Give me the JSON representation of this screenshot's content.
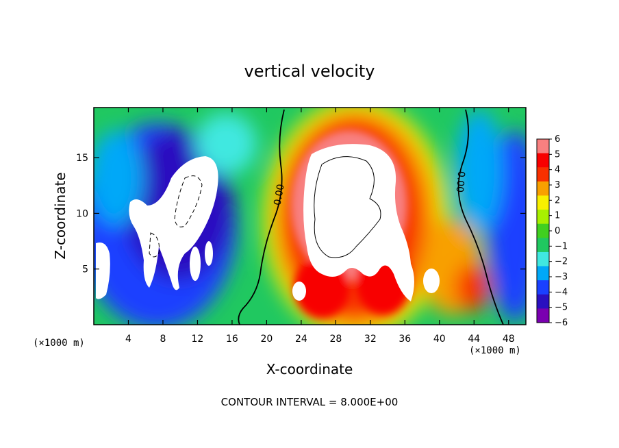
{
  "chart_data": {
    "type": "heatmap",
    "title": "vertical velocity",
    "xlabel": "X-coordinate",
    "ylabel": "Z-coordinate",
    "x_unit": "(×1000 m)",
    "x_ticks": [
      4,
      8,
      12,
      16,
      20,
      24,
      28,
      32,
      36,
      40,
      44,
      48
    ],
    "y_ticks": [
      5,
      10,
      15
    ],
    "xlim": [
      0,
      50
    ],
    "ylim": [
      0,
      19.5
    ],
    "colorbar": {
      "ticks": [
        6,
        5,
        4,
        3,
        2,
        1,
        0,
        -1,
        -2,
        -3,
        -4,
        -5,
        -6
      ],
      "range": [
        -6,
        6
      ]
    },
    "contour_labels": [
      "0.00",
      "0.00"
    ],
    "contour_interval_text": "CONTOUR INTERVAL = 8.000E+00"
  },
  "colors": {
    "stops": [
      "#7a00b0",
      "#2a10c0",
      "#1a40ff",
      "#00a8f8",
      "#40e8e0",
      "#20c860",
      "#40d020",
      "#a8f000",
      "#f8f000",
      "#f8a000",
      "#f83000",
      "#f80000",
      "#f88080"
    ]
  }
}
